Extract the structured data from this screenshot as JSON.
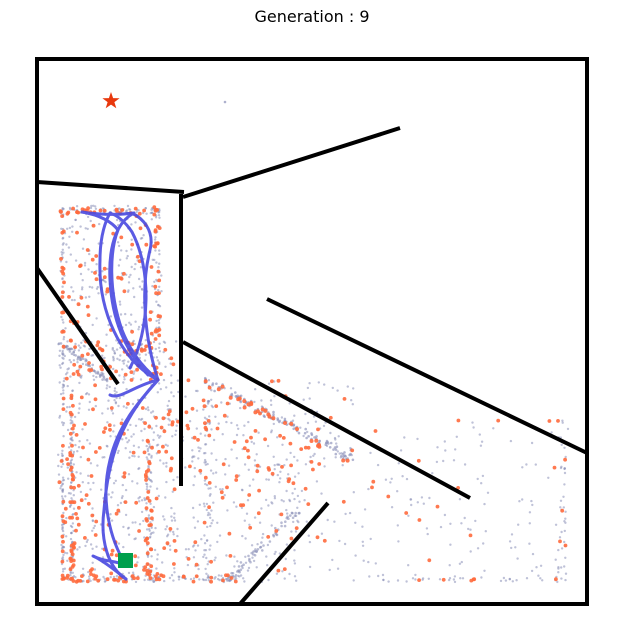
{
  "title": "Generation : 9",
  "colors": {
    "walls": "#000000",
    "trajectory": "#4a4ae0",
    "archive_points": "#ff6a3d",
    "explored_points": "#8a8fb8",
    "goal": "#e8380d",
    "start": "#009f4d"
  },
  "icons": {
    "goal": "star",
    "start": "square"
  }
}
